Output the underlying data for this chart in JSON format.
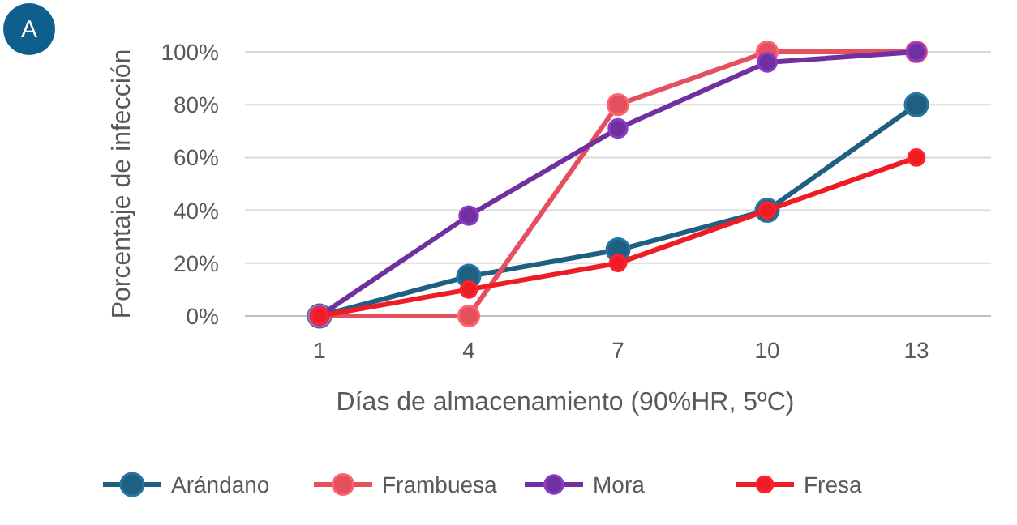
{
  "chart_data": {
    "type": "line",
    "xlabel": "Días de almacenamiento (90%HR, 5ºC)",
    "ylabel": "Porcentaje de infección",
    "annotations": [
      "A"
    ],
    "categories": [
      "1",
      "4",
      "7",
      "10",
      "13"
    ],
    "ylim": [
      0,
      100
    ],
    "yticks": [
      {
        "value": 0,
        "label": "0%"
      },
      {
        "value": 20,
        "label": "20%"
      },
      {
        "value": 40,
        "label": "40%"
      },
      {
        "value": 60,
        "label": "60%"
      },
      {
        "value": 80,
        "label": "80%"
      },
      {
        "value": 100,
        "label": "100%"
      }
    ],
    "grid": "y",
    "legend": "bottom",
    "marker": "circle",
    "line_style": "solid",
    "series": [
      {
        "name": "Arándano",
        "color": "#1f5f82",
        "values": [
          0,
          15,
          25,
          40,
          80
        ]
      },
      {
        "name": "Frambuesa",
        "color": "#e4505e",
        "values": [
          0,
          0,
          80,
          100,
          100
        ]
      },
      {
        "name": "Mora",
        "color": "#7030a0",
        "values": [
          0,
          38,
          71,
          96,
          100
        ]
      },
      {
        "name": "Fresa",
        "color": "#ee1c25",
        "values": [
          0,
          10,
          20,
          40,
          60
        ]
      }
    ]
  }
}
